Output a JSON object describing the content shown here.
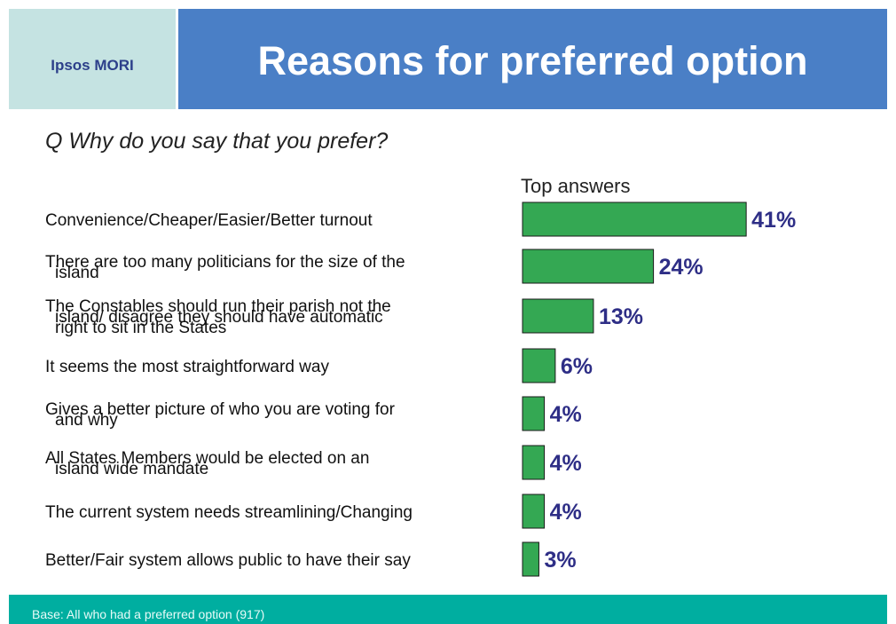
{
  "header": {
    "logo_text": "Ipsos MORI",
    "title": "Reasons for preferred option"
  },
  "question": "Q   Why do you say that you prefer?",
  "footer": {
    "base_text": "Base: All who had a preferred option (917)"
  },
  "colors": {
    "bar": "#34a853",
    "value_label": "#2e2e86",
    "header": "#4a7fc6",
    "logo_panel": "#c5e3e2",
    "footer": "#00aea0"
  },
  "chart_data": {
    "type": "bar",
    "orientation": "horizontal",
    "series_label": "Top answers",
    "categories": [
      [
        "Convenience/Cheaper/Easier/Better turnout"
      ],
      [
        "There are too many politicians for the size of the",
        "island"
      ],
      [
        "The Constables should run their parish not the",
        "island/ disagree they should have automatic",
        "right to sit in the States"
      ],
      [
        "It seems the most straightforward way"
      ],
      [
        "Gives a better picture of who you are voting for",
        "and why"
      ],
      [
        "All States Members would be elected on an",
        "island wide mandate"
      ],
      [
        "The current system needs streamlining/Changing"
      ],
      [
        "Better/Fair system allows public to have their say"
      ]
    ],
    "values": [
      41,
      24,
      13,
      6,
      4,
      4,
      4,
      3
    ],
    "value_labels": [
      "41%",
      "24%",
      "13%",
      "6%",
      "4%",
      "4%",
      "4%",
      "3%"
    ],
    "unit": "%",
    "grid": false
  }
}
